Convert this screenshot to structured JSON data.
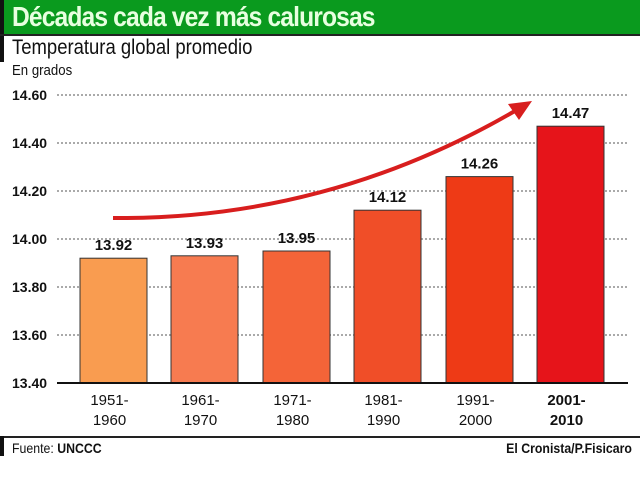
{
  "chart_data": {
    "type": "bar",
    "title": "Décadas cada vez más calurosas",
    "subtitle": "Temperatura global promedio",
    "ylabel": "En grados",
    "xlabel": "",
    "categories": [
      [
        "1951-",
        "1960"
      ],
      [
        "1961-",
        "1970"
      ],
      [
        "1971-",
        "1980"
      ],
      [
        "1981-",
        "1990"
      ],
      [
        "1991-",
        "2000"
      ],
      [
        "2001-",
        "2010"
      ]
    ],
    "values": [
      13.92,
      13.93,
      13.95,
      14.12,
      14.26,
      14.47
    ],
    "value_labels": [
      "13.92",
      "13.93",
      "13.95",
      "14.12",
      "14.26",
      "14.47"
    ],
    "ylim": [
      13.4,
      14.6
    ],
    "yticks": [
      "14.60",
      "14.40",
      "14.20",
      "14.00",
      "13.80",
      "13.60",
      "13.40"
    ],
    "ytick_values": [
      14.6,
      14.4,
      14.2,
      14.0,
      13.8,
      13.6,
      13.4
    ],
    "grid": true,
    "colors": [
      "#f99c50",
      "#f77b50",
      "#f46438",
      "#f04e28",
      "#ee3a16",
      "#e6141a"
    ],
    "arrow_color": "#d81e1e",
    "annotations": [
      "trend arrow rising"
    ]
  },
  "footer": {
    "source_label": "Fuente:",
    "source": "UNCCC",
    "credit": "El Cronista/P.Fisicaro"
  }
}
